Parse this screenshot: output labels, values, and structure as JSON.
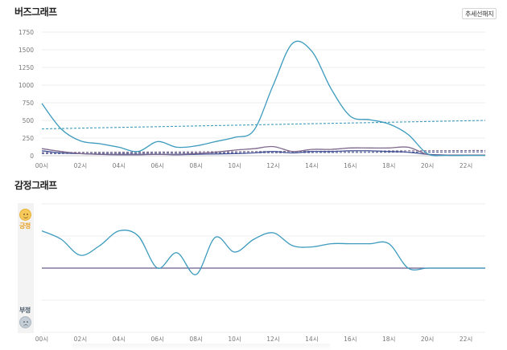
{
  "page": {
    "buzz_title": "버즈그래프",
    "emotion_title": "감정그래프",
    "trend_button": "추세선해지",
    "positive_label": "긍정",
    "negative_label": "부정",
    "positive_icon": "smile-face-icon",
    "negative_icon": "frown-face-icon"
  },
  "chart_data": [
    {
      "type": "line",
      "title": "버즈그래프",
      "x_categories": [
        "00시",
        "02시",
        "04시",
        "06시",
        "08시",
        "10시",
        "12시",
        "14시",
        "16시",
        "18시",
        "20시",
        "22시"
      ],
      "x": [
        0,
        1,
        2,
        3,
        4,
        5,
        6,
        7,
        8,
        9,
        10,
        11,
        12,
        13,
        14,
        15,
        16,
        17,
        18,
        19,
        20,
        21,
        22,
        23
      ],
      "yticks": [
        0,
        250,
        500,
        750,
        1000,
        1250,
        1500,
        1750
      ],
      "ylim": [
        0,
        1750
      ],
      "grid": true,
      "series": [
        {
          "color": "#3d9bbd",
          "values": [
            740,
            380,
            210,
            170,
            120,
            60,
            200,
            120,
            140,
            200,
            260,
            360,
            1000,
            1590,
            1480,
            950,
            560,
            510,
            450,
            300,
            30,
            5,
            5,
            5
          ]
        },
        {
          "color": "#7f6a8e",
          "values": [
            100,
            60,
            30,
            20,
            20,
            20,
            20,
            20,
            30,
            50,
            80,
            100,
            130,
            60,
            90,
            90,
            110,
            110,
            110,
            120,
            20,
            10,
            10,
            10
          ]
        },
        {
          "color": "#4b5a9a",
          "values": [
            70,
            40,
            30,
            20,
            15,
            15,
            20,
            15,
            20,
            25,
            30,
            40,
            60,
            40,
            60,
            60,
            70,
            70,
            60,
            50,
            20,
            10,
            10,
            10
          ]
        }
      ],
      "trend_lines": [
        {
          "color": "#3d9bbd",
          "from": 380,
          "to": 500
        },
        {
          "color": "#7f6a8e",
          "from": 45,
          "to": 75
        },
        {
          "color": "#4b5a9a",
          "from": 30,
          "to": 55
        }
      ]
    },
    {
      "type": "line",
      "title": "감정그래프",
      "x_categories": [
        "00시",
        "02시",
        "04시",
        "06시",
        "08시",
        "10시",
        "12시",
        "14시",
        "16시",
        "18시",
        "20시",
        "22시"
      ],
      "x": [
        0,
        1,
        2,
        3,
        4,
        5,
        6,
        7,
        8,
        9,
        10,
        11,
        12,
        13,
        14,
        15,
        16,
        17,
        18,
        19,
        20,
        21,
        22,
        23
      ],
      "ylim": [
        -1,
        1
      ],
      "series": [
        {
          "color": "#3d9bbd",
          "values": [
            0.58,
            0.45,
            0.2,
            0.35,
            0.58,
            0.5,
            0.0,
            0.24,
            -0.1,
            0.48,
            0.25,
            0.45,
            0.55,
            0.35,
            0.33,
            0.38,
            0.38,
            0.38,
            0.38,
            0.0,
            0.0,
            0.0,
            0.0,
            0.0
          ]
        },
        {
          "color": "#6a5a8e",
          "values": [
            0,
            0,
            0,
            0,
            0,
            0,
            0,
            0,
            0,
            0,
            0,
            0,
            0,
            0,
            0,
            0,
            0,
            0,
            0,
            0,
            0,
            0,
            0,
            0
          ]
        }
      ]
    }
  ]
}
